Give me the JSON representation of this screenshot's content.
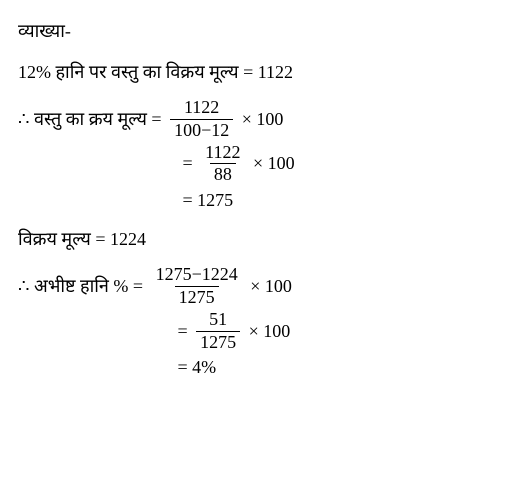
{
  "title": "व्याख्या-",
  "line1": "12% हानि पर वस्तु का विक्रय मूल्य = 1122",
  "eq1": {
    "lhs": "∴ वस्तु का क्रय मूल्य = ",
    "num": "1122",
    "den": "100−12",
    "rhs": " × 100"
  },
  "eq2": {
    "eqsign": " = ",
    "num": "1122",
    "den": "88",
    "rhs": " × 100"
  },
  "eq3": " = 1275",
  "line2": "विक्रय मूल्य = 1224",
  "eq4": {
    "lhs": "∴ अभीष्ट हानि % = ",
    "num": "1275−1224",
    "den": "1275",
    "rhs": " × 100"
  },
  "eq5": {
    "eqsign": " = ",
    "num": "51",
    "den": "1275",
    "rhs": " × 100"
  },
  "eq6": " = 4%"
}
